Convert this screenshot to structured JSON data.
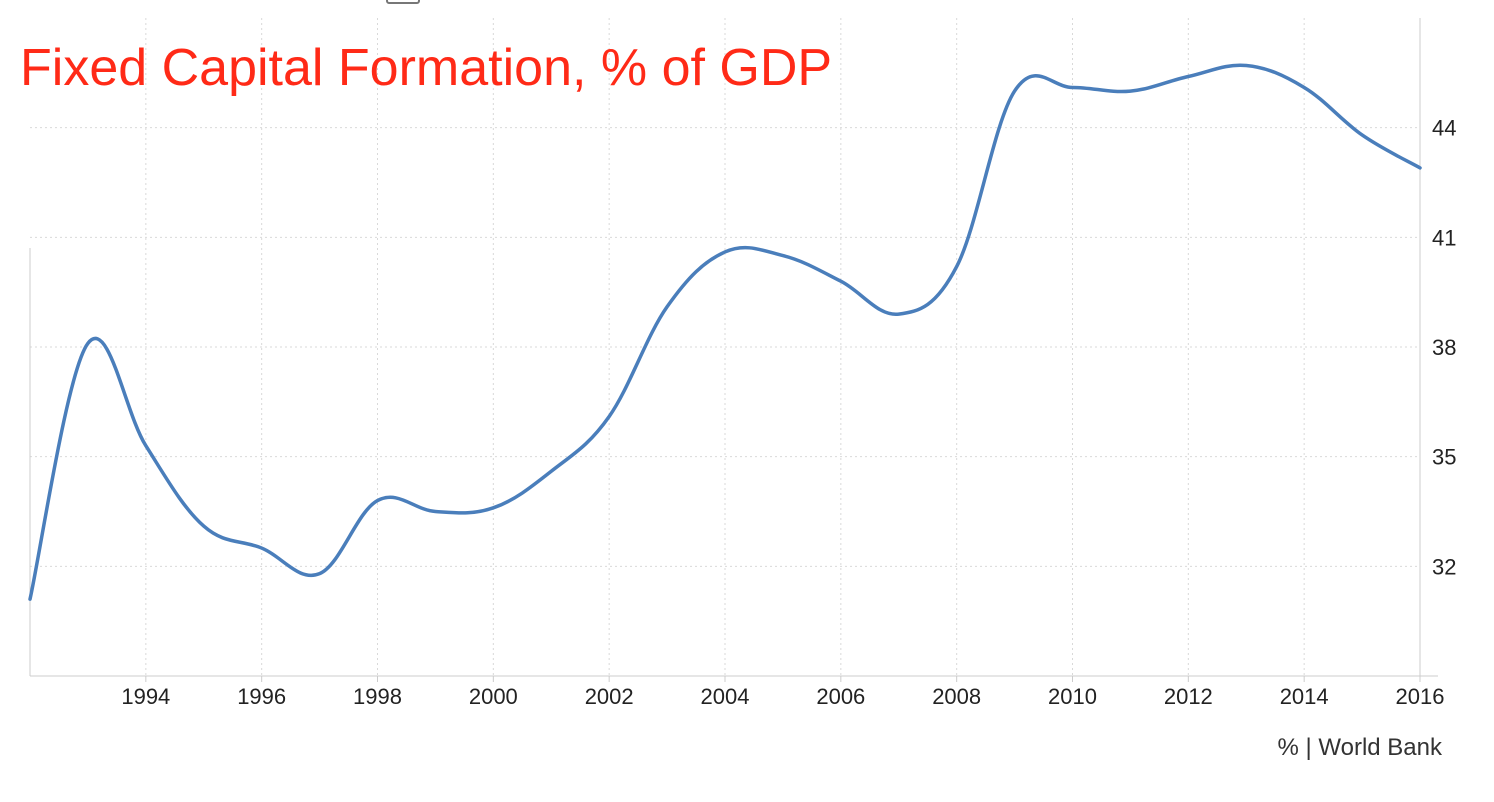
{
  "chart_data": {
    "type": "line",
    "title": "Fixed Capital Formation, % of GDP",
    "source": "% | World Bank",
    "xlim": [
      1992.0,
      2016.0
    ],
    "ylim": [
      29.0,
      47.0
    ],
    "x_ticks": [
      "1994",
      "1996",
      "1998",
      "2000",
      "2002",
      "2004",
      "2006",
      "2008",
      "2010",
      "2012",
      "2014",
      "2016"
    ],
    "y_ticks": [
      "32",
      "35",
      "38",
      "41",
      "44"
    ],
    "y_axis_position": "right",
    "grid": true,
    "colors": {
      "series": "#4a7ebb",
      "title": "#ff2a17"
    },
    "series": [
      {
        "x": [
          1992.0,
          1993.0,
          1994.0,
          1995.0,
          1996.0,
          1997.0,
          1998.0,
          1999.0,
          2000.0,
          2001.0,
          2002.0,
          2003.0,
          2004.0,
          2005.0,
          2006.0,
          2007.0,
          2008.0,
          2009.0,
          2010.0,
          2011.0,
          2012.0,
          2013.0,
          2014.0,
          2015.0,
          2016.0
        ],
        "values": [
          31.1,
          38.1,
          35.3,
          33.1,
          32.5,
          31.8,
          33.8,
          33.5,
          33.6,
          34.6,
          36.1,
          39.1,
          40.6,
          40.5,
          39.8,
          38.9,
          40.2,
          45.0,
          45.1,
          45.0,
          45.4,
          45.7,
          45.1,
          43.8,
          42.9
        ]
      }
    ]
  }
}
